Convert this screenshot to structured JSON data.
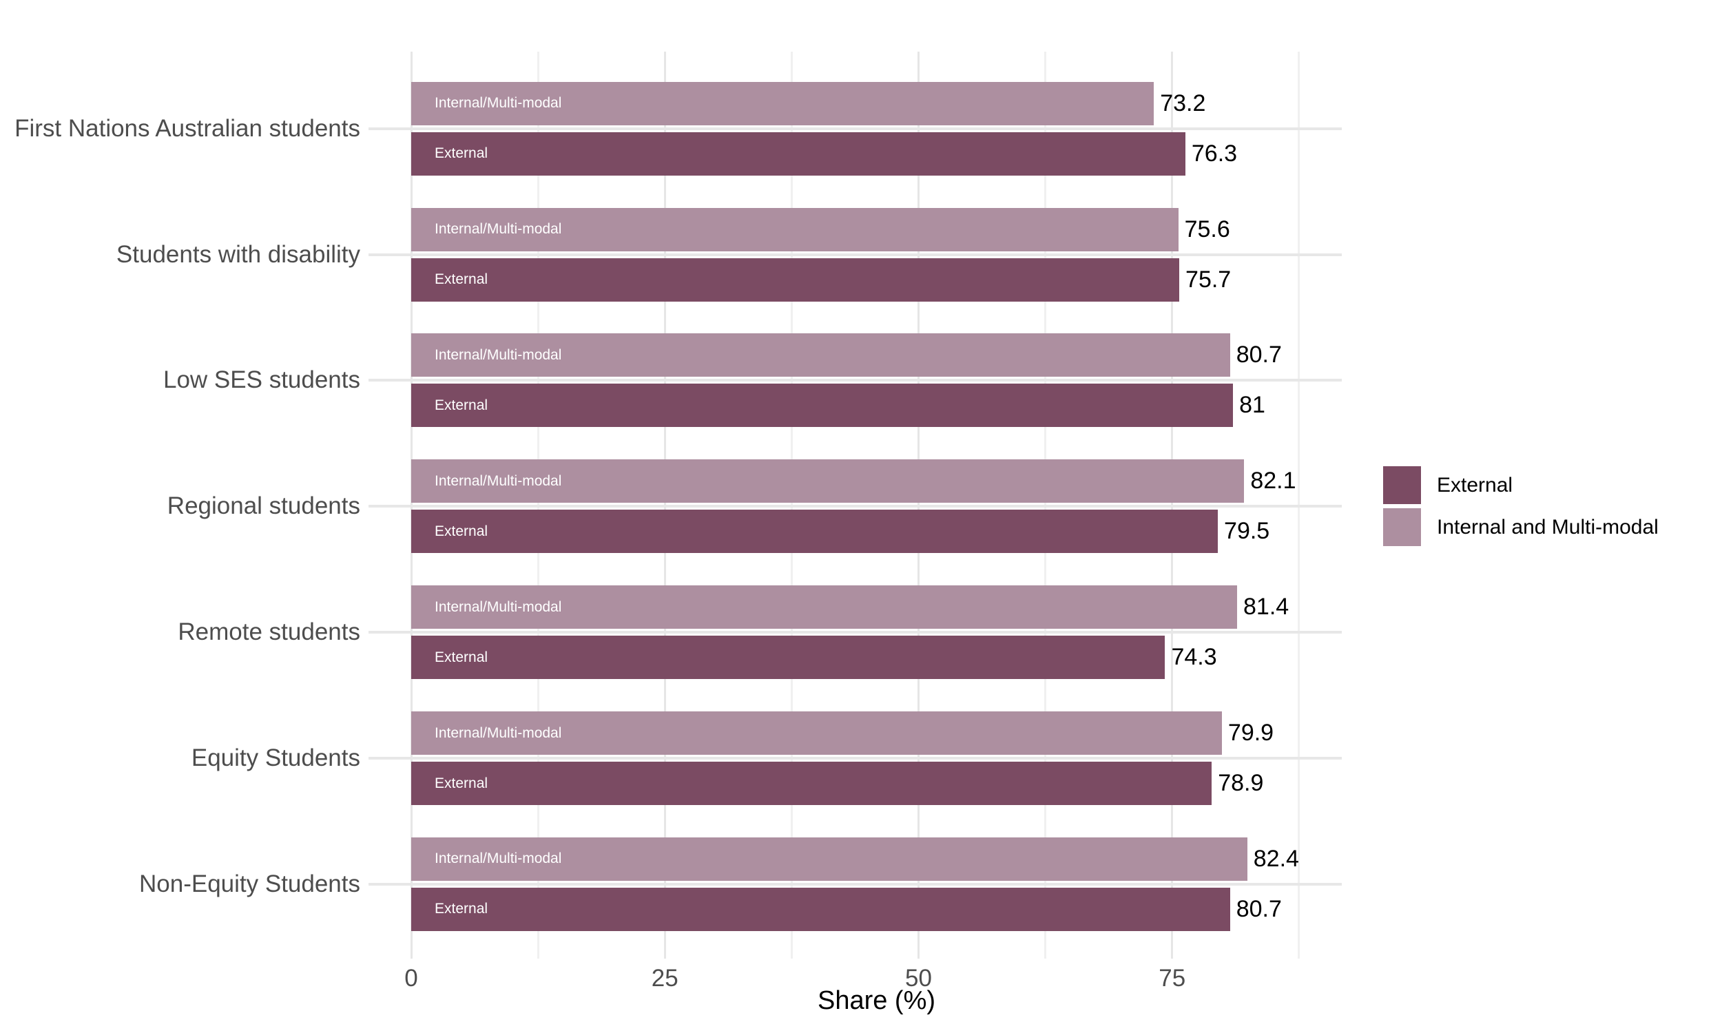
{
  "chart_data": {
    "type": "bar",
    "orientation": "horizontal",
    "title": "",
    "xlabel": "Share (%)",
    "ylabel": "",
    "x_ticks": [
      0,
      25,
      50,
      75
    ],
    "x_tick_labels": [
      "0",
      "25",
      "50",
      "75"
    ],
    "x_minor_ticks": [
      12.5,
      37.5,
      62.5,
      87.5
    ],
    "xlim": [
      0,
      91.7
    ],
    "grid": true,
    "legend_position": "right",
    "categories": [
      "First Nations Australian students",
      "Students with disability",
      "Low SES students",
      "Regional students",
      "Remote students",
      "Equity Students",
      "Non-Equity Students"
    ],
    "series": [
      {
        "name": "Internal and Multi-modal",
        "bar_label": "Internal/Multi-modal",
        "color": "#ad8fa0",
        "values": [
          73.2,
          75.6,
          80.7,
          82.1,
          81.4,
          79.9,
          82.4
        ],
        "value_labels": [
          "73.2",
          "75.6",
          "80.7",
          "82.1",
          "81.4",
          "79.9",
          "82.4"
        ]
      },
      {
        "name": "External",
        "bar_label": "External",
        "color": "#7b4b63",
        "values": [
          76.3,
          75.7,
          81,
          79.5,
          74.3,
          78.9,
          80.7
        ],
        "value_labels": [
          "76.3",
          "75.7",
          "81",
          "79.5",
          "74.3",
          "78.9",
          "80.7"
        ]
      }
    ],
    "legend": [
      {
        "label": "External",
        "color": "#7b4b63"
      },
      {
        "label": "Internal and Multi-modal",
        "color": "#ad8fa0"
      }
    ],
    "colors": {
      "background": "#ffffff",
      "category_label": "#4d4d4d",
      "tick_label": "#4d4d4d",
      "value_label": "#000000",
      "bar_inner_label": "#ffffff",
      "grid_major": "#e6e6e6",
      "grid_minor": "#f0f0f0",
      "category_gridline": "#e7e7e7"
    }
  }
}
